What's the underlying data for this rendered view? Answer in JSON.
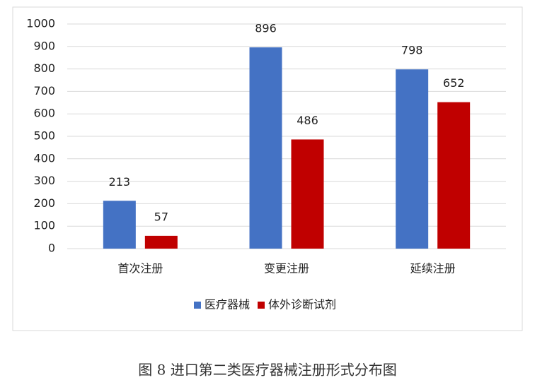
{
  "chart_data": {
    "type": "bar",
    "categories": [
      "首次注册",
      "变更注册",
      "延续注册"
    ],
    "series": [
      {
        "name": "医疗器械",
        "color": "#4472c4",
        "values": [
          213,
          896,
          798
        ]
      },
      {
        "name": "体外诊断试剂",
        "color": "#c00000",
        "values": [
          57,
          486,
          652
        ]
      }
    ],
    "ylim": [
      0,
      1000
    ],
    "yticks": [
      0,
      100,
      200,
      300,
      400,
      500,
      600,
      700,
      800,
      900,
      1000
    ],
    "grid": true,
    "legend": "bottom",
    "data_labels": true
  },
  "caption": "图 8  进口第二类医疗器械注册形式分布图"
}
